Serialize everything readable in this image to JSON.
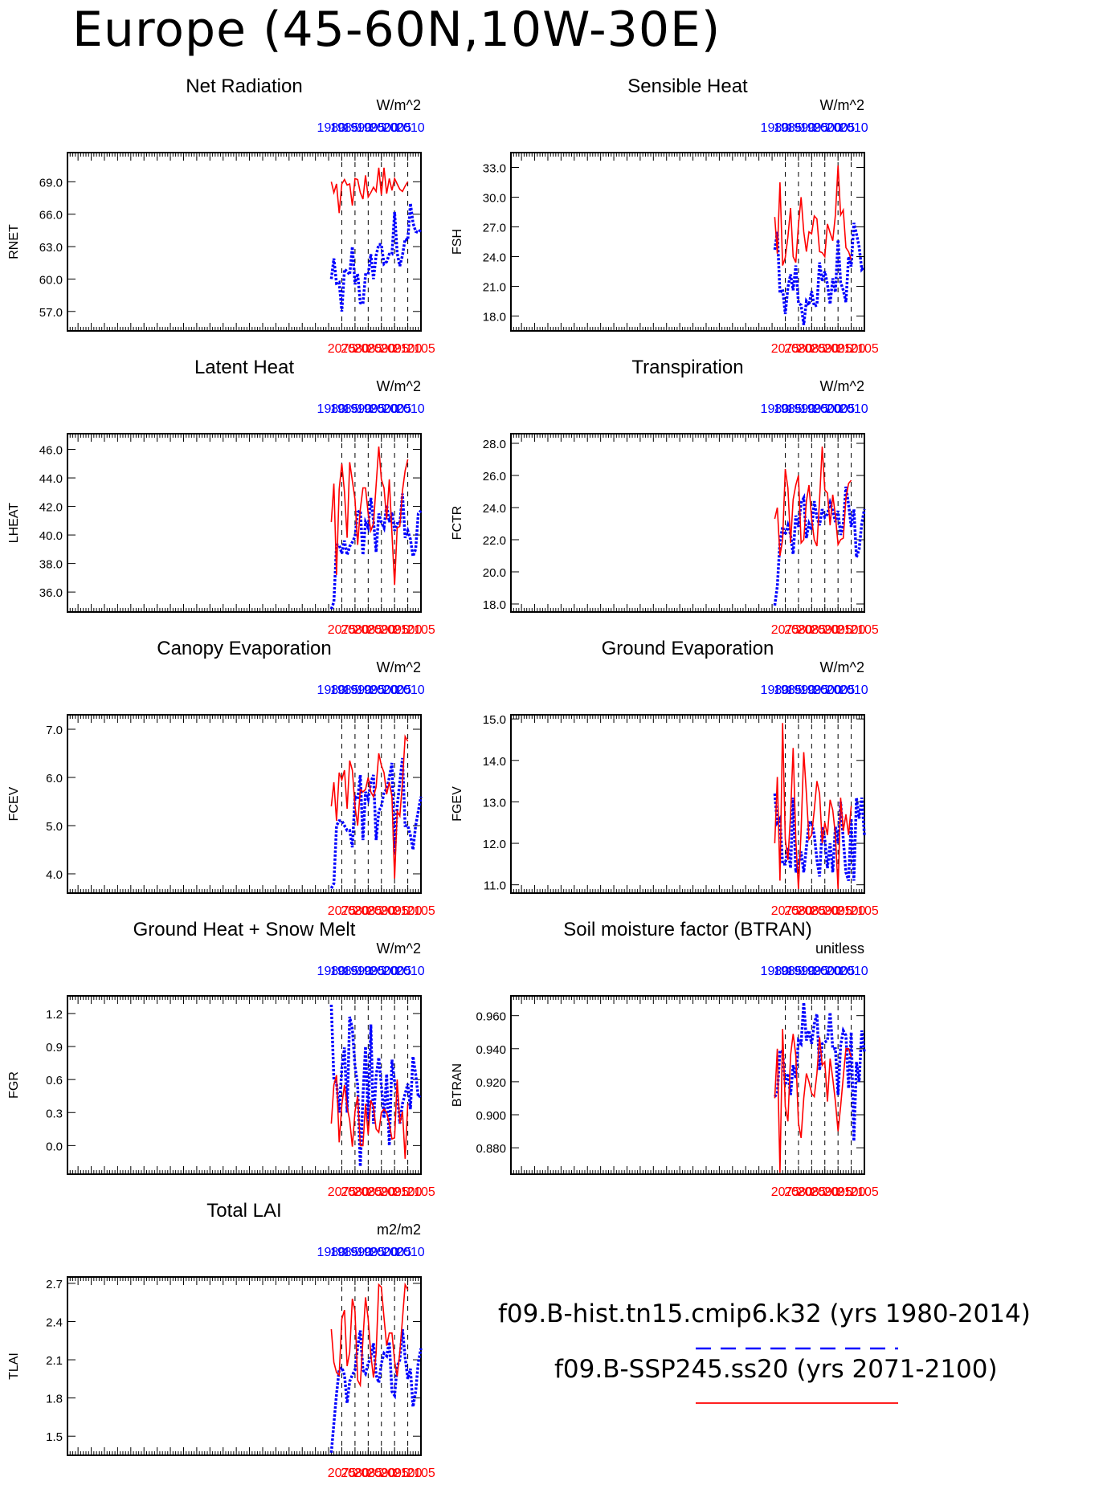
{
  "title": "Europe (45-60N,10W-30E)",
  "legend": {
    "historical": {
      "label": "f09.B-hist.tn15.cmip6.k32 (yrs 1980-2014)",
      "color": "#0000ff",
      "style": "dashed"
    },
    "future": {
      "label": "f09.B-SSP245.ss20 (yrs 2071-2100)",
      "color": "#ff0000",
      "style": "solid"
    }
  },
  "chart_data": [
    {
      "type": "line",
      "title": "Net Radiation",
      "ylabel": "RNET",
      "units": "W/m^2",
      "ylim": [
        55.2,
        71.7
      ],
      "yticks": [
        "57.0",
        "60.0",
        "63.0",
        "66.0",
        "69.0"
      ],
      "x_bottom_ticks": [
        "2075",
        "2080",
        "2085",
        "2090",
        "2095",
        "2100",
        "2105"
      ],
      "x_top_ticks": [
        "1980",
        "1985",
        "1990",
        "1995",
        "2000",
        "2005",
        "2010"
      ],
      "series": [
        {
          "series_key": "historical",
          "x_start": 1980,
          "values": [
            60.0,
            61.9,
            59.6,
            59.7,
            57.0,
            60.9,
            60.7,
            60.4,
            63.0,
            59.5,
            60.5,
            57.8,
            57.7,
            60.4,
            60.4,
            62.3,
            60.0,
            62.2,
            63.2,
            63.2,
            61.4,
            61.6,
            62.3,
            62.3,
            66.2,
            62.4,
            61.2,
            62.2,
            63.7,
            63.6,
            67.0,
            65.2,
            64.4,
            64.3,
            64.6
          ]
        },
        {
          "series_key": "future",
          "x_start": 2071,
          "values": [
            69.0,
            68.0,
            68.8,
            66.1,
            68.8,
            69.2,
            68.7,
            68.8,
            66.8,
            69.3,
            69.2,
            68.0,
            67.4,
            69.6,
            67.6,
            68.0,
            68.5,
            68.1,
            70.3,
            67.8,
            70.3,
            67.9,
            69.3,
            68.2,
            69.3,
            68.8,
            68.3,
            68.1,
            68.6,
            69.0
          ]
        }
      ]
    },
    {
      "type": "line",
      "title": "Sensible Heat",
      "ylabel": "FSH",
      "units": "W/m^2",
      "ylim": [
        16.5,
        34.5
      ],
      "yticks": [
        "18.0",
        "21.0",
        "24.0",
        "27.0",
        "30.0",
        "33.0"
      ],
      "x_bottom_ticks": [
        "2075",
        "2080",
        "2085",
        "2090",
        "2095",
        "2100",
        "2105"
      ],
      "x_top_ticks": [
        "1980",
        "1985",
        "1990",
        "1995",
        "2000",
        "2005",
        "2010"
      ],
      "series": [
        {
          "series_key": "historical",
          "x_start": 1980,
          "values": [
            24.7,
            26.5,
            20.3,
            20.7,
            18.2,
            20.9,
            22.2,
            20.6,
            23.1,
            19.3,
            19.1,
            17.1,
            19.5,
            19.1,
            20.5,
            19.0,
            19.1,
            23.4,
            21.5,
            22.5,
            21.2,
            19.2,
            21.8,
            20.4,
            25.7,
            21.4,
            20.6,
            19.4,
            24.0,
            23.0,
            27.4,
            26.3,
            25.0,
            22.7,
            23.0
          ]
        },
        {
          "series_key": "future",
          "x_start": 2071,
          "values": [
            28.0,
            24.3,
            31.5,
            23.1,
            23.9,
            26.0,
            28.9,
            24.0,
            23.4,
            27.2,
            30.0,
            26.5,
            24.5,
            26.5,
            26.3,
            28.1,
            27.8,
            24.5,
            24.4,
            24.0,
            27.3,
            26.4,
            25.6,
            28.2,
            33.2,
            28.2,
            28.7,
            24.9,
            24.5,
            23.7
          ]
        }
      ]
    },
    {
      "type": "line",
      "title": "Latent Heat",
      "ylabel": "LHEAT",
      "units": "W/m^2",
      "ylim": [
        34.6,
        47.1
      ],
      "yticks": [
        "36.0",
        "38.0",
        "40.0",
        "42.0",
        "44.0",
        "46.0"
      ],
      "x_bottom_ticks": [
        "2075",
        "2080",
        "2085",
        "2090",
        "2095",
        "2100",
        "2105"
      ],
      "x_top_ticks": [
        "1980",
        "1985",
        "1990",
        "1995",
        "2000",
        "2005",
        "2010"
      ],
      "series": [
        {
          "series_key": "historical",
          "x_start": 1980,
          "values": [
            34.8,
            35.3,
            39.3,
            39.3,
            38.7,
            39.6,
            38.6,
            39.2,
            39.5,
            39.9,
            41.6,
            41.7,
            38.6,
            40.9,
            40.5,
            42.6,
            41.0,
            38.8,
            41.5,
            40.9,
            40.5,
            42.1,
            40.9,
            41.6,
            40.3,
            40.8,
            40.8,
            42.9,
            39.8,
            40.3,
            39.7,
            38.5,
            39.0,
            41.5,
            41.7
          ]
        },
        {
          "series_key": "future",
          "x_start": 2071,
          "values": [
            40.9,
            43.6,
            37.2,
            43.2,
            45.0,
            43.0,
            39.8,
            45.1,
            43.8,
            42.5,
            39.3,
            41.8,
            43.3,
            43.3,
            41.5,
            40.3,
            40.8,
            43.5,
            46.2,
            43.9,
            43.3,
            41.1,
            43.9,
            40.1,
            36.5,
            40.5,
            40.6,
            43.1,
            44.5,
            45.3
          ]
        }
      ]
    },
    {
      "type": "line",
      "title": "Transpiration",
      "ylabel": "FCTR",
      "units": "W/m^2",
      "ylim": [
        17.5,
        28.6
      ],
      "yticks": [
        "18.0",
        "20.0",
        "22.0",
        "24.0",
        "26.0",
        "28.0"
      ],
      "x_bottom_ticks": [
        "2075",
        "2080",
        "2085",
        "2090",
        "2095",
        "2100",
        "2105"
      ],
      "x_top_ticks": [
        "1980",
        "1985",
        "1990",
        "1995",
        "2000",
        "2005",
        "2010"
      ],
      "series": [
        {
          "series_key": "historical",
          "x_start": 1980,
          "values": [
            17.9,
            19.1,
            21.9,
            22.8,
            22.3,
            22.9,
            22.3,
            21.1,
            23.5,
            22.8,
            24.3,
            24.6,
            22.1,
            23.0,
            22.6,
            24.4,
            23.4,
            22.9,
            23.9,
            23.4,
            23.6,
            24.3,
            23.8,
            23.1,
            23.8,
            22.3,
            23.0,
            25.3,
            24.2,
            22.8,
            23.9,
            20.9,
            21.4,
            23.0,
            23.9
          ]
        },
        {
          "series_key": "future",
          "x_start": 2071,
          "values": [
            23.3,
            24.0,
            21.0,
            22.0,
            26.4,
            25.2,
            21.8,
            24.5,
            25.4,
            26.0,
            21.8,
            22.0,
            24.4,
            25.4,
            23.3,
            22.0,
            21.6,
            24.5,
            27.8,
            25.1,
            24.9,
            22.9,
            24.8,
            23.5,
            21.7,
            22.0,
            22.1,
            24.6,
            25.5,
            25.7
          ]
        }
      ]
    },
    {
      "type": "line",
      "title": "Canopy Evaporation",
      "ylabel": "FCEV",
      "units": "W/m^2",
      "ylim": [
        3.6,
        7.3
      ],
      "yticks": [
        "4.0",
        "5.0",
        "6.0",
        "7.0"
      ],
      "x_bottom_ticks": [
        "2075",
        "2080",
        "2085",
        "2090",
        "2095",
        "2100",
        "2105"
      ],
      "x_top_ticks": [
        "1980",
        "1985",
        "1990",
        "1995",
        "2000",
        "2005",
        "2010"
      ],
      "series": [
        {
          "series_key": "historical",
          "x_start": 1980,
          "values": [
            3.7,
            3.8,
            5.0,
            5.1,
            5.1,
            5.0,
            4.9,
            4.9,
            4.55,
            5.6,
            5.55,
            6.05,
            4.7,
            5.7,
            5.55,
            5.9,
            6.05,
            4.7,
            5.3,
            5.4,
            5.7,
            5.75,
            6.0,
            6.3,
            4.4,
            5.4,
            5.9,
            6.4,
            5.0,
            5.0,
            4.8,
            4.5,
            5.0,
            5.3,
            5.6
          ]
        },
        {
          "series_key": "future",
          "x_start": 2071,
          "values": [
            5.4,
            5.9,
            5.1,
            6.1,
            5.95,
            6.15,
            5.35,
            6.35,
            6.15,
            5.4,
            5.0,
            5.75,
            5.7,
            5.75,
            6.0,
            5.7,
            5.6,
            5.8,
            6.5,
            6.25,
            6.1,
            5.65,
            5.9,
            5.6,
            3.9,
            5.3,
            5.2,
            5.9,
            6.85,
            6.75
          ]
        }
      ]
    },
    {
      "type": "line",
      "title": "Ground Evaporation",
      "ylabel": "FGEV",
      "units": "W/m^2",
      "ylim": [
        10.8,
        15.1
      ],
      "yticks": [
        "11.0",
        "12.0",
        "13.0",
        "14.0",
        "15.0"
      ],
      "x_bottom_ticks": [
        "2075",
        "2080",
        "2085",
        "2090",
        "2095",
        "2100",
        "2105"
      ],
      "x_top_ticks": [
        "1980",
        "1985",
        "1990",
        "1995",
        "2000",
        "2005",
        "2010"
      ],
      "series": [
        {
          "series_key": "historical",
          "x_start": 1980,
          "values": [
            13.2,
            12.5,
            12.6,
            11.5,
            11.5,
            11.9,
            11.4,
            13.1,
            11.3,
            11.5,
            11.8,
            11.3,
            11.9,
            12.5,
            12.5,
            12.2,
            11.6,
            11.2,
            12.4,
            12.1,
            11.4,
            12.0,
            11.3,
            12.4,
            12.0,
            13.0,
            12.1,
            11.3,
            11.1,
            12.6,
            11.1,
            13.1,
            12.6,
            13.1,
            12.2
          ]
        },
        {
          "series_key": "future",
          "x_start": 2071,
          "values": [
            12.0,
            13.6,
            11.1,
            14.9,
            12.1,
            11.6,
            12.7,
            14.3,
            12.1,
            10.9,
            12.3,
            14.2,
            13.2,
            12.1,
            12.2,
            12.8,
            13.5,
            13.2,
            12.0,
            12.5,
            12.2,
            13.05,
            12.8,
            12.2,
            10.9,
            13.1,
            12.3,
            12.7,
            12.2,
            12.9
          ]
        }
      ]
    },
    {
      "type": "line",
      "title": "Ground Heat + Snow Melt",
      "ylabel": "FGR",
      "units": "W/m^2",
      "ylim": [
        -0.26,
        1.36
      ],
      "yticks": [
        "0.0",
        "0.3",
        "0.6",
        "0.9",
        "1.2"
      ],
      "x_bottom_ticks": [
        "2075",
        "2080",
        "2085",
        "2090",
        "2095",
        "2100",
        "2105"
      ],
      "x_top_ticks": [
        "1980",
        "1985",
        "1990",
        "1995",
        "2000",
        "2005",
        "2010"
      ],
      "series": [
        {
          "series_key": "historical",
          "x_start": 1980,
          "values": [
            1.28,
            0.6,
            0.57,
            0.3,
            0.7,
            0.89,
            0.3,
            1.17,
            1.06,
            0.72,
            0.55,
            -0.19,
            0.45,
            0.9,
            0.22,
            1.1,
            0.2,
            0.63,
            0.8,
            0.55,
            0.25,
            0.65,
            0.0,
            0.78,
            0.58,
            0.47,
            0.2,
            0.38,
            0.47,
            0.56,
            0.33,
            0.81,
            0.65,
            0.44,
            0.46
          ]
        },
        {
          "series_key": "future",
          "x_start": 2071,
          "values": [
            0.2,
            0.55,
            0.64,
            0.03,
            0.37,
            0.55,
            0.35,
            0.23,
            -0.01,
            0.31,
            0.45,
            0.0,
            0.0,
            0.38,
            0.1,
            0.41,
            0.35,
            0.15,
            0.12,
            0.3,
            0.33,
            0.3,
            0.2,
            0.06,
            0.07,
            0.6,
            0.2,
            0.31,
            -0.12,
            0.38
          ]
        }
      ]
    },
    {
      "type": "line",
      "title": "Soil moisture factor (BTRAN)",
      "ylabel": "BTRAN",
      "units": "unitless",
      "ylim": [
        0.864,
        0.972
      ],
      "yticks": [
        "0.880",
        "0.900",
        "0.920",
        "0.940",
        "0.960"
      ],
      "x_bottom_ticks": [
        "2075",
        "2080",
        "2085",
        "2090",
        "2095",
        "2100",
        "2105"
      ],
      "x_top_ticks": [
        "1980",
        "1985",
        "1990",
        "1995",
        "2000",
        "2005",
        "2010"
      ],
      "series": [
        {
          "series_key": "historical",
          "x_start": 1980,
          "values": [
            0.911,
            0.913,
            0.939,
            0.938,
            0.918,
            0.925,
            0.912,
            0.93,
            0.922,
            0.945,
            0.943,
            0.968,
            0.945,
            0.951,
            0.943,
            0.955,
            0.961,
            0.927,
            0.943,
            0.944,
            0.945,
            0.962,
            0.94,
            0.94,
            0.912,
            0.942,
            0.951,
            0.948,
            0.916,
            0.95,
            0.884,
            0.932,
            0.92,
            0.951,
            0.938
          ]
        },
        {
          "series_key": "future",
          "x_start": 2071,
          "values": [
            0.91,
            0.94,
            0.865,
            0.952,
            0.905,
            0.896,
            0.936,
            0.949,
            0.936,
            0.895,
            0.886,
            0.91,
            0.925,
            0.92,
            0.913,
            0.911,
            0.925,
            0.947,
            0.93,
            0.932,
            0.908,
            0.934,
            0.922,
            0.908,
            0.89,
            0.905,
            0.923,
            0.94,
            0.94,
            0.935
          ]
        }
      ]
    },
    {
      "type": "line",
      "title": "Total LAI",
      "ylabel": "TLAI",
      "units": "m2/m2",
      "ylim": [
        1.35,
        2.75
      ],
      "yticks": [
        "1.5",
        "1.8",
        "2.1",
        "2.4",
        "2.7"
      ],
      "x_bottom_ticks": [
        "2075",
        "2080",
        "2085",
        "2090",
        "2095",
        "2100",
        "2105"
      ],
      "x_top_ticks": [
        "1980",
        "1985",
        "1990",
        "1995",
        "2000",
        "2005",
        "2010"
      ],
      "series": [
        {
          "series_key": "historical",
          "x_start": 1980,
          "values": [
            1.37,
            1.6,
            1.83,
            2.02,
            2.04,
            1.98,
            1.76,
            1.93,
            1.98,
            2.02,
            2.2,
            2.33,
            2.02,
            1.99,
            2.07,
            2.12,
            2.23,
            1.98,
            1.92,
            2.07,
            2.15,
            2.13,
            2.24,
            1.85,
            1.82,
            2.05,
            2.1,
            2.34,
            2.12,
            1.95,
            2.03,
            1.73,
            1.85,
            2.08,
            2.19
          ]
        },
        {
          "series_key": "future",
          "x_start": 2071,
          "values": [
            2.34,
            2.08,
            2.0,
            1.98,
            2.42,
            2.49,
            2.05,
            2.16,
            2.58,
            2.48,
            1.94,
            1.9,
            2.26,
            2.59,
            2.42,
            2.14,
            1.96,
            2.15,
            2.69,
            2.67,
            2.43,
            2.21,
            2.31,
            2.31,
            2.09,
            1.97,
            2.16,
            2.42,
            2.69,
            2.65
          ]
        }
      ]
    }
  ]
}
